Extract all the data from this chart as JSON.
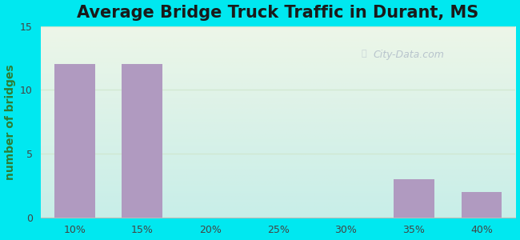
{
  "title": "Average Bridge Truck Traffic in Durant, MS",
  "categories": [
    "10%",
    "15%",
    "20%",
    "25%",
    "30%",
    "35%",
    "40%"
  ],
  "values": [
    12,
    12,
    0,
    0,
    0,
    3,
    2
  ],
  "bar_color": "#b09ac0",
  "ylim": [
    0,
    15
  ],
  "yticks": [
    0,
    5,
    10,
    15
  ],
  "ylabel": "number of bridges",
  "outer_bg": "#00e8f0",
  "plot_bg_topleft": "#e8f5e2",
  "plot_bg_bottomright": "#c8eee8",
  "grid_color": "#d0e8d0",
  "title_fontsize": 15,
  "axis_label_fontsize": 10,
  "tick_fontsize": 9,
  "watermark_text": "City-Data.com",
  "watermark_color": "#b0bcc8",
  "ylabel_color": "#2e7d32"
}
